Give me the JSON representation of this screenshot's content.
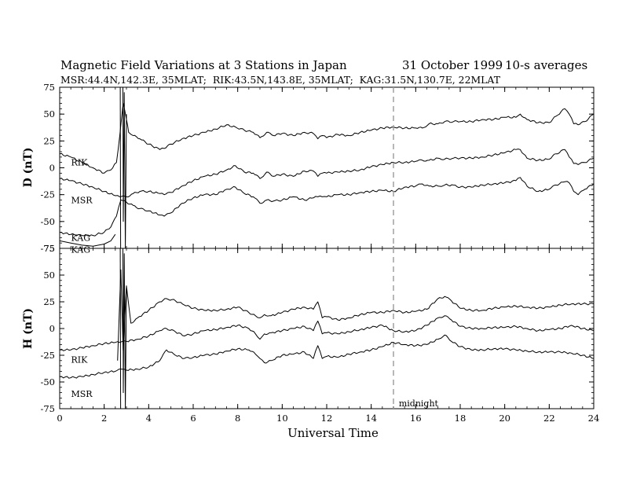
{
  "header": {
    "title": "Magnetic Field Variations at 3 Stations in Japan",
    "date": "31 October 1999",
    "averaging": "10-s averages",
    "stations_line": "MSR:44.4N,142.3E, 35MLAT;  RIK:43.5N,143.8E, 35MLAT;  KAG:31.5N,130.7E, 22MLAT"
  },
  "chart_data": [
    {
      "type": "line",
      "panel": "D",
      "ylabel": "D (nT)",
      "xlabel": "",
      "xlim": [
        0,
        24
      ],
      "ylim": [
        -75,
        75
      ],
      "yticks": [
        -75,
        -50,
        -25,
        0,
        25,
        50,
        75
      ],
      "ytick_labels": [
        "-75",
        "-50",
        "-25",
        "0",
        "25",
        "50",
        "75"
      ],
      "series": [
        {
          "name": "RIK",
          "x": [
            0,
            0.5,
            1,
            1.5,
            2,
            2.3,
            2.55,
            2.7,
            2.85,
            3.0,
            3.1,
            3.3,
            3.6,
            4.0,
            4.5,
            4.7,
            5.0,
            5.5,
            6.0,
            6.5,
            7.0,
            7.5,
            7.9,
            8.3,
            8.7,
            9.0,
            9.3,
            9.6,
            10,
            10.5,
            11,
            11.4,
            11.6,
            11.8,
            12,
            12.5,
            13,
            13.5,
            14,
            14.5,
            15,
            15.5,
            16,
            16.3,
            16.6,
            17,
            17.3,
            17.7,
            18,
            18.5,
            19,
            19.5,
            20,
            20.5,
            20.7,
            21,
            21.5,
            22,
            22.3,
            22.7,
            22.9,
            23.1,
            23.3,
            23.6,
            24
          ],
          "y": [
            13,
            10,
            5,
            0,
            -5,
            -2,
            5,
            30,
            60,
            45,
            33,
            30,
            27,
            22,
            17,
            18,
            22,
            27,
            30,
            33,
            36,
            40,
            38,
            35,
            33,
            28,
            33,
            30,
            32,
            30,
            33,
            32,
            27,
            30,
            28,
            31,
            30,
            33,
            35,
            37,
            38,
            37,
            37,
            37,
            41,
            41,
            43,
            43,
            43,
            43,
            45,
            45,
            47,
            47,
            50,
            45,
            42,
            42,
            48,
            55,
            50,
            41,
            40,
            43,
            50
          ],
          "label_x": 0.3,
          "label_y": 5
        },
        {
          "name": "MSR",
          "x": [
            0,
            0.5,
            1,
            1.5,
            2,
            2.5,
            2.7,
            3.0,
            3.3,
            3.6,
            4.0,
            4.5,
            4.7,
            5.0,
            5.5,
            6.0,
            6.5,
            7.0,
            7.5,
            7.9,
            8.3,
            8.7,
            9.0,
            9.3,
            9.6,
            10,
            10.5,
            11,
            11.4,
            11.6,
            11.8,
            12,
            12.5,
            13,
            13.5,
            14,
            14.5,
            15,
            15.5,
            16,
            16.3,
            16.6,
            17,
            17.3,
            17.7,
            18,
            18.5,
            19,
            19.5,
            20,
            20.5,
            20.7,
            21,
            21.5,
            22,
            22.3,
            22.7,
            22.9,
            23.1,
            23.3,
            23.6,
            24
          ],
          "y": [
            -10,
            -12,
            -15,
            -18,
            -22,
            -26,
            -27,
            -27,
            -24,
            -22,
            -22,
            -24,
            -25,
            -23,
            -17,
            -12,
            -8,
            -6,
            -2,
            2,
            -4,
            -5,
            -10,
            -4,
            -8,
            -6,
            -8,
            -3,
            -3,
            -8,
            -5,
            -5,
            -4,
            -3,
            -2,
            1,
            3,
            5,
            5,
            6,
            7,
            7,
            9,
            8,
            9,
            9,
            9,
            10,
            12,
            14,
            17,
            17,
            9,
            7,
            8,
            13,
            17,
            10,
            4,
            3,
            5,
            9
          ],
          "label_x": 0.3,
          "label_y": -30
        },
        {
          "name": "KAG",
          "x": [
            0,
            0.5,
            1,
            1.5,
            2,
            2.3,
            2.55,
            2.75,
            3.0,
            3.3,
            3.6,
            4.0,
            4.5,
            4.7,
            5.0,
            5.5,
            6.0,
            6.5,
            7.0,
            7.5,
            7.9,
            8.3,
            8.7,
            9.0,
            9.3,
            9.6,
            10,
            10.5,
            11,
            11.4,
            11.6,
            11.8,
            12,
            12.5,
            13,
            13.5,
            14,
            14.5,
            15,
            15.5,
            16,
            16.3,
            16.6,
            17,
            17.3,
            17.7,
            18,
            18.5,
            19,
            19.5,
            20,
            20.5,
            20.7,
            21,
            21.5,
            22,
            22.3,
            22.7,
            22.9,
            23.1,
            23.3,
            23.6,
            24
          ],
          "y": [
            -60,
            -62,
            -63,
            -63,
            -60,
            -55,
            -45,
            -30,
            -32,
            -35,
            -38,
            -40,
            -44,
            -45,
            -42,
            -33,
            -28,
            -25,
            -25,
            -20,
            -18,
            -24,
            -27,
            -33,
            -30,
            -31,
            -30,
            -27,
            -30,
            -28,
            -27,
            -27,
            -27,
            -25,
            -25,
            -23,
            -22,
            -21,
            -22,
            -18,
            -17,
            -15,
            -17,
            -17,
            -16,
            -16,
            -18,
            -18,
            -16,
            -15,
            -14,
            -12,
            -9,
            -17,
            -22,
            -20,
            -16,
            -13,
            -14,
            -22,
            -25,
            -20,
            -15
          ],
          "label_x": 0.3,
          "label_y": -65
        },
        {
          "name": "KAG",
          "x": [
            0,
            0.5,
            1,
            1.5,
            2,
            2.3,
            2.5
          ],
          "y": [
            -68,
            -70,
            -72,
            -73,
            -71,
            -68,
            -62
          ],
          "label_x": 0.3,
          "label_y": -76
        },
        {
          "name": "",
          "x": [
            2.72,
            2.74
          ],
          "y": [
            75,
            -75
          ]
        },
        {
          "name": "",
          "x": [
            2.84,
            2.86,
            2.9,
            2.95,
            3.0
          ],
          "y": [
            75,
            -50,
            70,
            -75,
            50
          ]
        }
      ]
    },
    {
      "type": "line",
      "panel": "H",
      "ylabel": "H (nT)",
      "xlabel": "Universal Time",
      "xlim": [
        0,
        24
      ],
      "ylim": [
        -75,
        75
      ],
      "xticks": [
        0,
        2,
        4,
        6,
        8,
        10,
        12,
        14,
        16,
        18,
        20,
        22,
        24
      ],
      "xtick_labels": [
        "0",
        "2",
        "4",
        "6",
        "8",
        "10",
        "12",
        "14",
        "16",
        "18",
        "20",
        "22",
        "24"
      ],
      "yticks": [
        -75,
        -50,
        -25,
        0,
        25,
        50,
        75
      ],
      "ytick_labels": [
        "-75",
        "-50",
        "-25",
        "0",
        "25",
        "50",
        "75"
      ],
      "annotation": {
        "text": "midnight",
        "x": 15.1,
        "y": -70
      },
      "vline_x": 15,
      "series": [
        {
          "name": "",
          "x": [
            2.6,
            2.75,
            2.85,
            3.0,
            3.2,
            3.5,
            4.0,
            4.5,
            4.8,
            5.2,
            5.6,
            6.0,
            6.5,
            7.0,
            7.5,
            8.0,
            8.5,
            8.8,
            9.0,
            9.2,
            9.5,
            10,
            10.5,
            11,
            11.4,
            11.6,
            11.8,
            12,
            12.5,
            13,
            13.5,
            14,
            14.5,
            15,
            15.5,
            16,
            16.5,
            17,
            17.3,
            17.6,
            18,
            18.5,
            19,
            19.5,
            20,
            20.5,
            21,
            21.5,
            22,
            22.5,
            23,
            23.5,
            24
          ],
          "y": [
            -30,
            55,
            -20,
            40,
            5,
            10,
            17,
            25,
            28,
            26,
            22,
            19,
            17,
            17,
            18,
            20,
            15,
            12,
            10,
            13,
            12,
            15,
            18,
            20,
            18,
            25,
            10,
            11,
            8,
            10,
            13,
            15,
            15,
            17,
            15,
            16,
            18,
            28,
            30,
            26,
            19,
            17,
            17,
            19,
            20,
            21,
            20,
            19,
            20,
            22,
            23,
            23,
            23
          ]
        },
        {
          "name": "RIK",
          "x": [
            0,
            0.5,
            1,
            1.5,
            2,
            2.5,
            2.7,
            3.0,
            3.5,
            4.0,
            4.5,
            4.8,
            5.2,
            5.6,
            6.0,
            6.5,
            7.0,
            7.5,
            8.0,
            8.5,
            8.8,
            9.0,
            9.2,
            9.5,
            10,
            10.5,
            11,
            11.4,
            11.6,
            11.8,
            12,
            12.5,
            13,
            13.5,
            14,
            14.5,
            15,
            15.5,
            16,
            16.5,
            17,
            17.3,
            17.6,
            18,
            18.5,
            19,
            19.5,
            20,
            20.5,
            21,
            21.5,
            22,
            22.5,
            23,
            23.5,
            24
          ],
          "y": [
            -20,
            -20,
            -18,
            -16,
            -14,
            -13,
            -13,
            -12,
            -10,
            -7,
            -2,
            0,
            -3,
            -7,
            -5,
            -2,
            -1,
            1,
            3,
            0,
            -5,
            -10,
            -5,
            -4,
            -2,
            0,
            2,
            -2,
            7,
            -5,
            -4,
            -5,
            -3,
            -1,
            1,
            3,
            -2,
            -3,
            -2,
            3,
            10,
            12,
            8,
            2,
            0,
            0,
            1,
            1,
            2,
            0,
            -2,
            -1,
            0,
            3,
            0,
            -2
          ],
          "label_x": 0.3,
          "label_y": -29
        },
        {
          "name": "MSR",
          "x": [
            0,
            0.5,
            1,
            1.5,
            2,
            2.5,
            2.8,
            3.0,
            3.5,
            4.0,
            4.5,
            4.8,
            5.2,
            5.6,
            6.0,
            6.5,
            7.0,
            7.5,
            8.0,
            8.5,
            8.8,
            9.0,
            9.2,
            9.5,
            10,
            10.5,
            11,
            11.4,
            11.6,
            11.8,
            12,
            12.5,
            13,
            13.5,
            14,
            14.5,
            15,
            15.5,
            16,
            16.5,
            17,
            17.3,
            17.6,
            18,
            18.5,
            19,
            19.5,
            20,
            20.5,
            21,
            21.5,
            22,
            22.5,
            23,
            23.5,
            24
          ],
          "y": [
            -45,
            -46,
            -45,
            -43,
            -41,
            -40,
            -38,
            -39,
            -38,
            -36,
            -30,
            -20,
            -25,
            -28,
            -27,
            -25,
            -24,
            -21,
            -19,
            -20,
            -24,
            -28,
            -32,
            -30,
            -25,
            -24,
            -22,
            -28,
            -16,
            -28,
            -26,
            -27,
            -24,
            -22,
            -20,
            -17,
            -13,
            -15,
            -16,
            -15,
            -10,
            -6,
            -12,
            -17,
            -20,
            -20,
            -19,
            -19,
            -20,
            -21,
            -22,
            -22,
            -22,
            -23,
            -25,
            -28
          ],
          "label_x": 0.3,
          "label_y": -61
        },
        {
          "name": "",
          "x": [
            2.72,
            2.74
          ],
          "y": [
            75,
            -75
          ]
        },
        {
          "name": "",
          "x": [
            2.84,
            2.86,
            2.9,
            2.95,
            3.0
          ],
          "y": [
            75,
            -60,
            70,
            -75,
            40
          ]
        }
      ]
    }
  ]
}
